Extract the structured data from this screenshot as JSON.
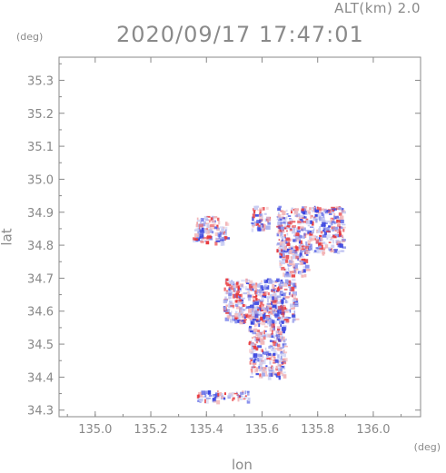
{
  "header": {
    "altitude": "ALT(km) 2.0",
    "timestamp": "2020/09/17 17:47:01"
  },
  "axes": {
    "x_unit": "(deg)",
    "y_unit": "(deg)",
    "x_label": "lon",
    "y_label": "lat"
  },
  "chart_data": {
    "type": "heatmap",
    "xlabel": "lon",
    "ylabel": "lat",
    "xlim": [
      134.87,
      136.17
    ],
    "ylim": [
      34.28,
      35.37
    ],
    "x_ticks": [
      "135.0",
      "135.2",
      "135.4",
      "135.6",
      "135.8",
      "136.0"
    ],
    "y_ticks": [
      "34.3",
      "34.4",
      "34.5",
      "34.6",
      "34.7",
      "34.8",
      "34.9",
      "35.0",
      "35.1",
      "35.2",
      "35.3"
    ],
    "x_tick_values": [
      135.0,
      135.2,
      135.4,
      135.6,
      135.8,
      136.0
    ],
    "y_tick_values": [
      34.3,
      34.4,
      34.5,
      34.6,
      34.7,
      34.8,
      34.9,
      35.0,
      35.1,
      35.2,
      35.3
    ],
    "colors": {
      "positive": "#e8383c",
      "negative": "#3a46e0",
      "weak": "#c9cdf2",
      "frame": "#888888"
    },
    "clusters": [
      {
        "lon": [
          135.55,
          135.68
        ],
        "lat": [
          34.4,
          34.62
        ]
      },
      {
        "lon": [
          135.46,
          135.72
        ],
        "lat": [
          34.57,
          34.7
        ]
      },
      {
        "lon": [
          135.65,
          135.89
        ],
        "lat": [
          34.78,
          34.92
        ]
      },
      {
        "lon": [
          135.35,
          135.47
        ],
        "lat": [
          34.81,
          34.89
        ]
      },
      {
        "lon": [
          135.56,
          135.62
        ],
        "lat": [
          34.85,
          34.92
        ]
      },
      {
        "lon": [
          135.36,
          135.55
        ],
        "lat": [
          34.33,
          34.36
        ]
      },
      {
        "lon": [
          135.66,
          135.76
        ],
        "lat": [
          34.71,
          34.8
        ]
      }
    ]
  }
}
